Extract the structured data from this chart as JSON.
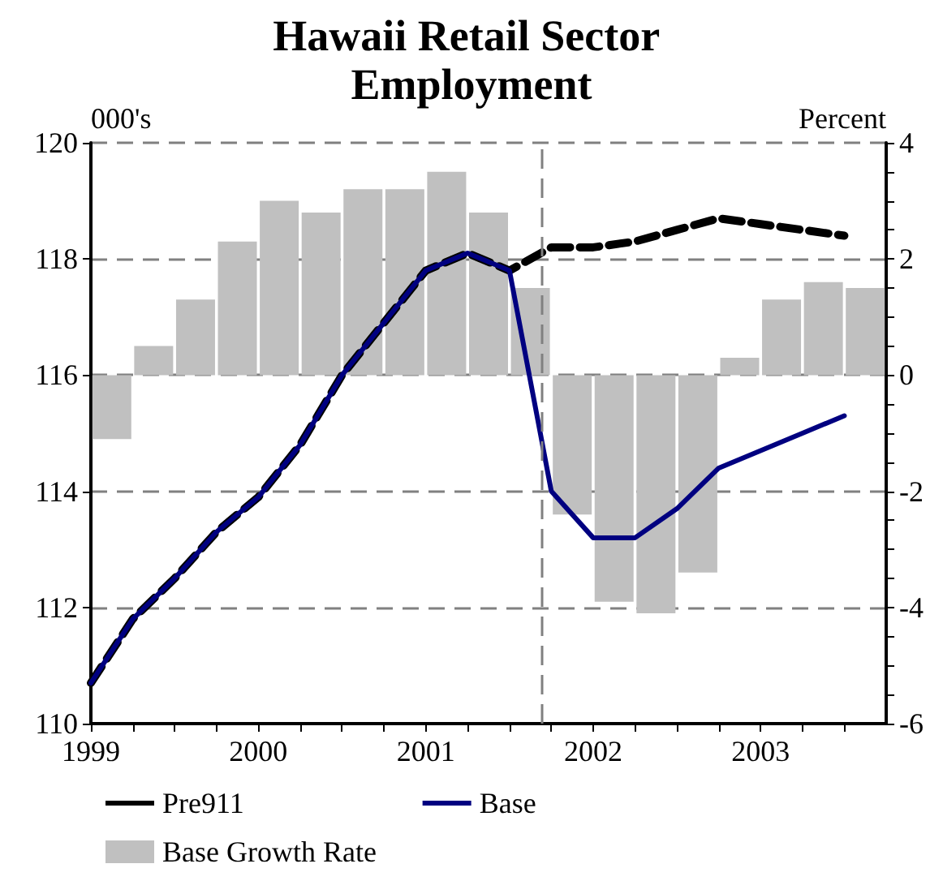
{
  "chart_data": {
    "type": "line",
    "title": "Hawaii Retail Sector Employment",
    "ylabel": "000's",
    "y2label": "Percent",
    "xlim": [
      1999,
      2003.75
    ],
    "xticks": [
      1999,
      {
        "value": 1999.25,
        "label": null
      },
      {
        "value": 1999.5,
        "label": null
      },
      {
        "value": 1999.75,
        "label": null
      },
      2000,
      {
        "value": 2000.25,
        "label": null
      },
      {
        "value": 2000.5,
        "label": null
      },
      {
        "value": 2000.75,
        "label": null
      },
      2001,
      {
        "value": 2001.25,
        "label": null
      },
      {
        "value": 2001.5,
        "label": null
      },
      {
        "value": 2001.75,
        "label": null
      },
      2002,
      {
        "value": 2002.25,
        "label": null
      },
      {
        "value": 2002.5,
        "label": null
      },
      {
        "value": 2002.75,
        "label": null
      },
      2003,
      {
        "value": 2003.25,
        "label": null
      },
      {
        "value": 2003.5,
        "label": null
      }
    ],
    "ylim": [
      110,
      120
    ],
    "yticks": [
      110,
      112,
      114,
      116,
      118,
      120
    ],
    "y2lim": [
      -6,
      4
    ],
    "y2ticks": [
      -6,
      {
        "value": -5.5,
        "label": null
      },
      {
        "value": -5,
        "label": null
      },
      {
        "value": -4.5,
        "label": null
      },
      -4,
      {
        "value": -3.5,
        "label": null
      },
      {
        "value": -3,
        "label": null
      },
      {
        "value": -2.5,
        "label": null
      },
      -2,
      {
        "value": -1.5,
        "label": null
      },
      {
        "value": -1,
        "label": null
      },
      {
        "value": -0.5,
        "label": null
      },
      0,
      {
        "value": 0.5,
        "label": null
      },
      {
        "value": 1,
        "label": null
      },
      {
        "value": 1.5,
        "label": null
      },
      2,
      {
        "value": 2.5,
        "label": null
      },
      {
        "value": 3,
        "label": null
      },
      {
        "value": 3.5,
        "label": null
      },
      4
    ],
    "grid": "y",
    "legend": "bottom",
    "marker": "none",
    "ref_lines": [
      {
        "axis": "x",
        "value": 2001.69,
        "color": "#808080",
        "line_style": "dashed"
      }
    ],
    "series": [
      {
        "name": "Base Growth Rate",
        "type": "bar",
        "axis": "y2",
        "color": "#c0c0c0",
        "x": [
          1999.125,
          1999.375,
          1999.625,
          1999.875,
          2000.125,
          2000.375,
          2000.625,
          2000.875,
          2001.125,
          2001.375,
          2001.625,
          2001.875,
          2002.125,
          2002.375,
          2002.625,
          2002.875,
          2003.125,
          2003.375,
          2003.625
        ],
        "values": [
          -1.1,
          0.5,
          1.3,
          2.3,
          3.0,
          2.8,
          3.2,
          3.2,
          3.5,
          2.8,
          1.5,
          -2.4,
          -3.9,
          -4.1,
          -3.4,
          0.3,
          1.3,
          1.6,
          1.5
        ]
      },
      {
        "name": "Pre911",
        "color": "#000000",
        "line_style": "dashed",
        "x": [
          1999,
          1999.25,
          1999.5,
          1999.75,
          2000,
          2000.25,
          2000.5,
          2000.75,
          2001,
          2001.25,
          2001.5,
          2001.75,
          2002,
          2002.25,
          2002.5,
          2002.75,
          2003,
          2003.25,
          2003.5
        ],
        "values": [
          110.7,
          111.8,
          112.5,
          113.3,
          113.9,
          114.8,
          116.0,
          116.9,
          117.8,
          118.1,
          117.8,
          118.2,
          118.2,
          118.3,
          118.5,
          118.7,
          118.6,
          118.5,
          118.4
        ]
      },
      {
        "name": "Base",
        "color": "#000080",
        "line_style": "solid",
        "x": [
          1999,
          1999.25,
          1999.5,
          1999.75,
          2000,
          2000.25,
          2000.5,
          2000.75,
          2001,
          2001.25,
          2001.5,
          2001.75,
          2002,
          2002.25,
          2002.5,
          2002.75,
          2003,
          2003.25,
          2003.5
        ],
        "values": [
          110.7,
          111.8,
          112.5,
          113.3,
          113.9,
          114.8,
          116.0,
          116.9,
          117.8,
          118.1,
          117.8,
          114.0,
          113.2,
          113.2,
          113.7,
          114.4,
          114.7,
          115.0,
          115.3
        ]
      }
    ]
  }
}
